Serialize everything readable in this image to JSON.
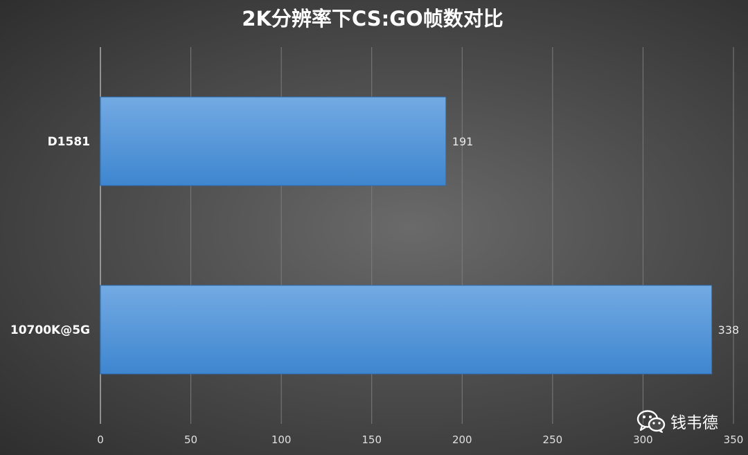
{
  "chart_data": {
    "type": "bar",
    "orientation": "horizontal",
    "title": "2K分辨率下CS:GO帧数对比",
    "categories": [
      "D1581",
      "10700K@5G"
    ],
    "values": [
      191,
      338
    ],
    "xlim": [
      0,
      350
    ],
    "xticks": [
      0,
      50,
      100,
      150,
      200,
      250,
      300,
      350
    ],
    "grid": true,
    "legend": "none",
    "bar_color": "#5b9bd5"
  },
  "watermark": {
    "text": "钱韦德",
    "icon": "wechat-icon"
  }
}
